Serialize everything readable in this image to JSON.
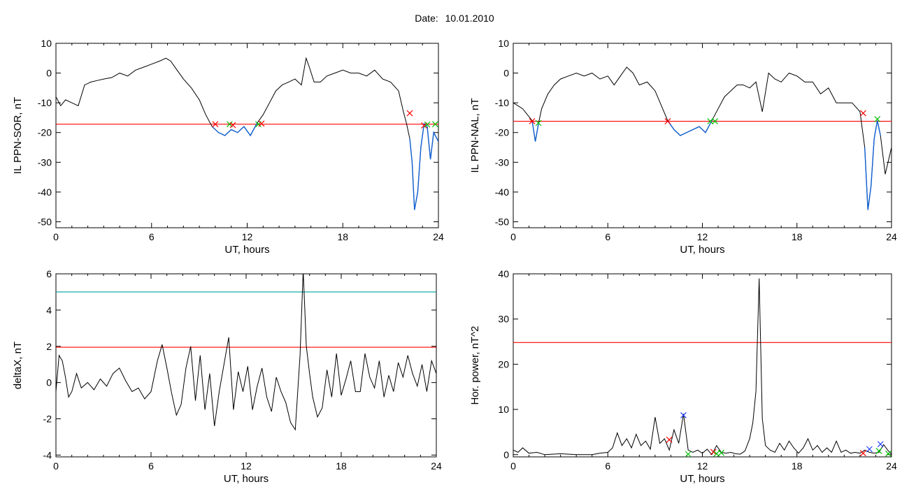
{
  "header": {
    "date_label": "Date:",
    "date_value": "10.01.2010"
  },
  "colors": {
    "trace": "#000000",
    "threshold": "#ff0000",
    "baseline": "#00a0a0",
    "highlight": "#1060d0",
    "marker_red": "#ff0000",
    "marker_green": "#00c000",
    "marker_blue": "#2040ff"
  },
  "chart_data": [
    {
      "id": "il-ppn-sor",
      "type": "line",
      "xlabel": "UT, hours",
      "ylabel": "IL PPN-SOR, nT",
      "xlim": [
        0,
        24
      ],
      "ylim": [
        -52,
        10
      ],
      "xticks": [
        "0",
        "6",
        "12",
        "18",
        "24"
      ],
      "yticks": [
        "10",
        "0",
        "-10",
        "-20",
        "-30",
        "-40",
        "-50"
      ],
      "threshold": -17.2,
      "series": [
        {
          "x": [
            0,
            0.3,
            0.6,
            1,
            1.4,
            1.8,
            2.2,
            2.6,
            3,
            3.5,
            4,
            4.5,
            5,
            5.5,
            6,
            6.5,
            6.9,
            7.2,
            7.6,
            8,
            8.5,
            9,
            9.4,
            9.8,
            10.2,
            10.6,
            11,
            11.4,
            11.8,
            12.2,
            12.6,
            13,
            13.4,
            13.8,
            14.2,
            14.6,
            15,
            15.4,
            15.7,
            15.9,
            16.2,
            16.6,
            17,
            17.5,
            18,
            18.5,
            19,
            19.5,
            20,
            20.5,
            21,
            21.5,
            21.8,
            22,
            22.2,
            22.35,
            22.5,
            22.7,
            22.9,
            23.1,
            23.3,
            23.5,
            23.7,
            24
          ],
          "y": [
            -8,
            -11,
            -9,
            -10,
            -11,
            -4,
            -3,
            -2.5,
            -2,
            -1.5,
            0,
            -1,
            1,
            2,
            3,
            4,
            5,
            4,
            1,
            -2,
            -5,
            -9,
            -14,
            -18,
            -20,
            -21,
            -19,
            -20,
            -18,
            -21,
            -17,
            -14,
            -10,
            -6,
            -4,
            -3,
            -2,
            -4,
            5,
            2,
            -3,
            -3,
            -1,
            0,
            1,
            0,
            0,
            -1,
            1,
            -2,
            -3,
            -6,
            -13,
            -17,
            -22,
            -30,
            -46,
            -40,
            -25,
            -17,
            -18,
            -29,
            -20,
            -23
          ]
        }
      ],
      "highlight_ranges": [
        [
          9.8,
          12.9
        ],
        [
          22.1,
          24
        ]
      ],
      "markers": [
        {
          "x": 10.0,
          "y": -17.2,
          "color": "red"
        },
        {
          "x": 10.9,
          "y": -17.2,
          "color": "green"
        },
        {
          "x": 11.1,
          "y": -17.5,
          "color": "red"
        },
        {
          "x": 12.7,
          "y": -17.2,
          "color": "green"
        },
        {
          "x": 12.9,
          "y": -17.0,
          "color": "red"
        },
        {
          "x": 22.2,
          "y": -13.5,
          "color": "red"
        },
        {
          "x": 23.1,
          "y": -17.6,
          "color": "red"
        },
        {
          "x": 23.3,
          "y": -17.3,
          "color": "green"
        },
        {
          "x": 23.8,
          "y": -17.2,
          "color": "green"
        }
      ]
    },
    {
      "id": "il-ppn-nal",
      "type": "line",
      "xlabel": "UT, hours",
      "ylabel": "IL PPN-NAL, nT",
      "xlim": [
        0,
        24
      ],
      "ylim": [
        -52,
        10
      ],
      "xticks": [
        "0",
        "6",
        "12",
        "18",
        "24"
      ],
      "yticks": [
        "10",
        "0",
        "-10",
        "-20",
        "-30",
        "-40",
        "-50"
      ],
      "threshold": -16.2,
      "series": [
        {
          "x": [
            0,
            0.3,
            0.6,
            0.9,
            1.2,
            1.4,
            1.6,
            1.8,
            2.2,
            2.6,
            3,
            3.5,
            4,
            4.5,
            5,
            5.5,
            6,
            6.4,
            6.8,
            7.2,
            7.6,
            8,
            8.5,
            9,
            9.4,
            9.8,
            10.2,
            10.6,
            11,
            11.4,
            11.8,
            12.2,
            12.6,
            13,
            13.4,
            13.8,
            14.2,
            14.6,
            15,
            15.4,
            15.8,
            16.2,
            16.6,
            17,
            17.5,
            18,
            18.5,
            19,
            19.5,
            20,
            20.5,
            21,
            21.5,
            22,
            22.3,
            22.5,
            22.7,
            22.9,
            23.1,
            23.3,
            23.6,
            24
          ],
          "y": [
            -10,
            -11,
            -12,
            -14,
            -16,
            -23,
            -17,
            -12,
            -7,
            -4,
            -2,
            -1,
            0,
            -1,
            0,
            -2,
            -1,
            -4,
            -1,
            2,
            0,
            -4,
            -3,
            -6,
            -11,
            -16,
            -19,
            -21,
            -20,
            -19,
            -18,
            -20,
            -16,
            -12,
            -8,
            -6,
            -4,
            -4,
            -5,
            -3,
            -13,
            0,
            -2,
            -3,
            0,
            -1,
            -3,
            -3,
            -7,
            -5,
            -10,
            -10,
            -10,
            -13,
            -25,
            -46,
            -38,
            -22,
            -16,
            -21,
            -34,
            -25
          ]
        }
      ],
      "highlight_ranges": [
        [
          1.1,
          1.7
        ],
        [
          9.8,
          12.8
        ],
        [
          22.2,
          23.3
        ]
      ],
      "markers": [
        {
          "x": 1.2,
          "y": -16.2,
          "color": "red"
        },
        {
          "x": 1.6,
          "y": -16.8,
          "color": "green"
        },
        {
          "x": 9.8,
          "y": -16.2,
          "color": "red"
        },
        {
          "x": 12.5,
          "y": -16.2,
          "color": "green"
        },
        {
          "x": 12.8,
          "y": -16.2,
          "color": "green"
        },
        {
          "x": 22.2,
          "y": -13.5,
          "color": "red"
        },
        {
          "x": 23.1,
          "y": -15.5,
          "color": "green"
        }
      ]
    },
    {
      "id": "deltax",
      "type": "line",
      "xlabel": "UT, hours",
      "ylabel": "deltaX, nT",
      "xlim": [
        0,
        24
      ],
      "ylim": [
        -4.1,
        6
      ],
      "xticks": [
        "0",
        "6",
        "12",
        "18",
        "24"
      ],
      "yticks": [
        "6",
        "4",
        "2",
        "0",
        "-2",
        "-4"
      ],
      "threshold": 1.95,
      "baseline": 5.0,
      "series": [
        {
          "x": [
            0,
            0.2,
            0.4,
            0.6,
            0.8,
            1,
            1.3,
            1.6,
            2,
            2.4,
            2.8,
            3.2,
            3.6,
            4,
            4.4,
            4.8,
            5.2,
            5.6,
            6,
            6.4,
            6.7,
            7,
            7.3,
            7.6,
            7.9,
            8.2,
            8.5,
            8.8,
            9.1,
            9.4,
            9.7,
            10,
            10.3,
            10.6,
            10.9,
            11.2,
            11.5,
            11.8,
            12.1,
            12.4,
            12.7,
            13,
            13.3,
            13.6,
            13.9,
            14.2,
            14.5,
            14.8,
            15.1,
            15.4,
            15.6,
            15.8,
            16,
            16.2,
            16.5,
            16.8,
            17.1,
            17.4,
            17.7,
            18,
            18.3,
            18.6,
            18.9,
            19.2,
            19.5,
            19.8,
            20.1,
            20.4,
            20.7,
            21,
            21.3,
            21.6,
            21.9,
            22.2,
            22.5,
            22.8,
            23.1,
            23.4,
            23.7,
            24
          ],
          "y": [
            -0.5,
            1.5,
            1.2,
            0.3,
            -0.8,
            -0.5,
            0.5,
            -0.3,
            0,
            -0.4,
            0.2,
            -0.2,
            0.5,
            0.8,
            0.1,
            -0.5,
            -0.3,
            -0.9,
            -0.5,
            1.2,
            2.1,
            0.8,
            -0.6,
            -1.8,
            -1.2,
            0.8,
            2,
            -1,
            1.5,
            -1.5,
            0.5,
            -2.4,
            -0.5,
            1,
            2.5,
            -1.5,
            0.6,
            -0.5,
            0.9,
            -1.5,
            -0.2,
            0.8,
            -0.8,
            -1.6,
            0.3,
            -0.5,
            -1.1,
            -2.2,
            -2.6,
            1.5,
            6.2,
            2,
            0.5,
            -0.8,
            -1.9,
            -1.4,
            0.7,
            -0.8,
            1.6,
            -0.7,
            0.2,
            1.2,
            -0.5,
            -0.5,
            1.6,
            0.3,
            -0.3,
            1.2,
            -0.8,
            0.4,
            -0.5,
            1.1,
            0.3,
            1.5,
            0.5,
            -0.2,
            1,
            -0.5,
            1.2,
            0.5
          ]
        }
      ]
    },
    {
      "id": "hor-power",
      "type": "line",
      "xlabel": "UT, hours",
      "ylabel": "Hor. power, nT^2",
      "xlim": [
        0,
        24
      ],
      "ylim": [
        -0.5,
        40
      ],
      "xticks": [
        "0",
        "6",
        "12",
        "18",
        "24"
      ],
      "yticks": [
        "40",
        "30",
        "20",
        "10",
        "0"
      ],
      "threshold": 24.8,
      "series": [
        {
          "x": [
            0,
            0.3,
            0.6,
            1,
            1.5,
            2,
            3,
            4,
            5,
            5.5,
            6,
            6.3,
            6.6,
            6.9,
            7.2,
            7.5,
            7.8,
            8.1,
            8.4,
            8.7,
            9,
            9.3,
            9.6,
            9.9,
            10.2,
            10.5,
            10.8,
            11.1,
            11.4,
            11.7,
            12,
            12.3,
            12.6,
            12.9,
            13.2,
            13.5,
            13.8,
            14.1,
            14.4,
            14.7,
            15,
            15.2,
            15.4,
            15.6,
            15.8,
            16,
            16.3,
            16.6,
            16.9,
            17.2,
            17.5,
            17.8,
            18.1,
            18.4,
            18.7,
            19,
            19.3,
            19.6,
            19.9,
            20.2,
            20.5,
            20.8,
            21.1,
            21.4,
            21.7,
            22,
            22.3,
            22.6,
            22.9,
            23.2,
            23.5,
            23.8,
            24
          ],
          "y": [
            1,
            0.5,
            1.5,
            0.3,
            0.5,
            0,
            0.2,
            0,
            0,
            0.3,
            0.5,
            1.5,
            4.8,
            2,
            3.5,
            1.5,
            4.5,
            2,
            3,
            1.2,
            8.3,
            2.5,
            3.5,
            1,
            5.5,
            2.5,
            9,
            1,
            0.5,
            1,
            0.3,
            1.2,
            0,
            2,
            0.5,
            0.3,
            0.5,
            0.2,
            0.1,
            0.8,
            3.5,
            7,
            14,
            39,
            8,
            2,
            1,
            0.5,
            2.5,
            1,
            3,
            1.5,
            0.3,
            1.5,
            3.5,
            1,
            2,
            0.5,
            1.5,
            0.5,
            3,
            0.5,
            1,
            0.3,
            0.5,
            0.3,
            1,
            0.5,
            0.3,
            0.5,
            2.2,
            0.8,
            0.1
          ]
        }
      ],
      "markers": [
        {
          "x": 9.9,
          "y": 3.3,
          "color": "red"
        },
        {
          "x": 10.8,
          "y": 8.7,
          "color": "blue"
        },
        {
          "x": 11.1,
          "y": 0.1,
          "color": "green"
        },
        {
          "x": 12.7,
          "y": 0.6,
          "color": "red"
        },
        {
          "x": 12.9,
          "y": 0.2,
          "color": "green"
        },
        {
          "x": 13.2,
          "y": 0.4,
          "color": "green"
        },
        {
          "x": 22.2,
          "y": 0.3,
          "color": "red"
        },
        {
          "x": 22.6,
          "y": 1.2,
          "color": "blue"
        },
        {
          "x": 23.2,
          "y": 0.8,
          "color": "green"
        },
        {
          "x": 23.3,
          "y": 2.3,
          "color": "blue"
        },
        {
          "x": 23.8,
          "y": 0.2,
          "color": "green"
        }
      ]
    }
  ]
}
